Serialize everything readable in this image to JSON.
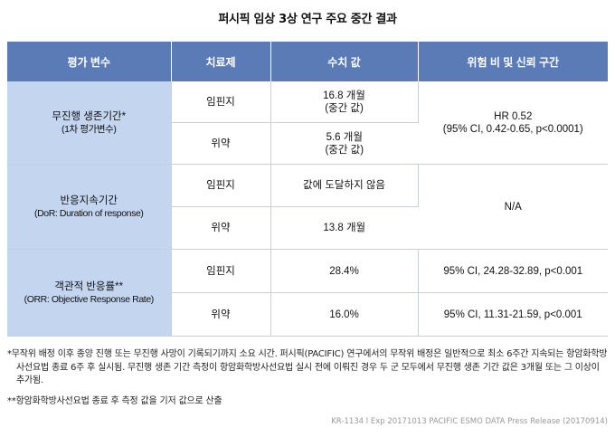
{
  "title": "퍼시픽 임상 3상 연구 주요 중간 결과",
  "table": {
    "headers": [
      "평가 변수",
      "치료제",
      "수치 값",
      "위험 비 및 신뢰 구간"
    ],
    "groups": [
      {
        "variable": "무진행 생존기간*",
        "variable_sub": "(1차 평가변수)",
        "rows": [
          {
            "treatment": "임핀지",
            "value_line1": "16.8 개월",
            "value_line2": "(중간 값)"
          },
          {
            "treatment": "위약",
            "value_line1": "5.6 개월",
            "value_line2": "(중간 값)"
          }
        ],
        "ratio": "HR 0.52",
        "ratio_sub": "(95% CI, 0.42-0.65, p<0.0001)"
      },
      {
        "variable": "반응지속기간",
        "variable_sub": "(DoR: Duration of response)",
        "rows": [
          {
            "treatment": "임핀지",
            "value_line1": "값에 도달하지 않음"
          },
          {
            "treatment": "위약",
            "value_line1": "13.8 개월"
          }
        ],
        "ratio": "N/A"
      },
      {
        "variable": "객관적 반응률**",
        "variable_sub": "(ORR: Objective Response Rate)",
        "rows": [
          {
            "treatment": "임핀지",
            "value_line1": "28.4%",
            "ratio": "95% CI, 24.28-32.89, p<0.001"
          },
          {
            "treatment": "위약",
            "value_line1": "16.0%",
            "ratio": "95% CI, 11.31-21.59, p<0.001"
          }
        ]
      }
    ]
  },
  "notes": [
    "*무작위 배정 이후 종양 진행 또는 무진행 사망이 기록되기까지 소요 시간. 퍼시픽(PACIFIC) 연구에서의 무작위 배정은 일반적으로 최소 6주간 지속되는 항암화학방사선요법 종료 6주 후 실시됨. 무진행 생존 기간 측정이 항암화학방사선요법 실시 전에 이뤄진 경우 두 군 모두에서 무진행 생존 기간 값은 3개월 또는 그 이상이 추가됨.",
    "**항암화학방사선요법 종료 후 측정 값을 기저 값으로 산출"
  ],
  "source": "KR-1134 l Exp 20171013 PACIFIC ESMO DATA Press Release (20170914)",
  "colors": {
    "header_bg": "#5b7bb6",
    "variable_bg": "#c4d5ef",
    "grid": "#c7cfdc"
  }
}
